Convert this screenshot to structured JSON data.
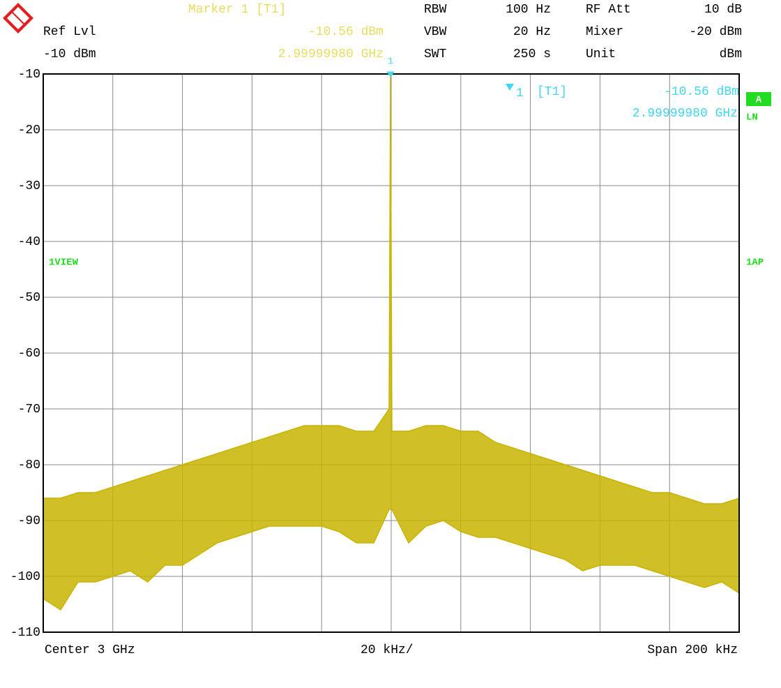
{
  "header": {
    "marker_title": "Marker 1 [T1]",
    "marker_level": "-10.56 dBm",
    "marker_freq": "2.99999980 GHz",
    "ref_lvl_label": "Ref Lvl",
    "ref_lvl": "-10 dBm",
    "settings": [
      {
        "name": "RBW",
        "value": "100 Hz"
      },
      {
        "name": "VBW",
        "value": "20 Hz"
      },
      {
        "name": "SWT",
        "value": "250 s"
      },
      {
        "name": "RF Att",
        "value": "10 dB"
      },
      {
        "name": "Mixer",
        "value": "-20 dBm"
      },
      {
        "name": "Unit",
        "value": "dBm"
      }
    ]
  },
  "side": {
    "trace_box": "A",
    "detector": "LN",
    "view": "1VIEW",
    "ap": "1AP"
  },
  "footer": {
    "center": "Center 3 GHz",
    "div": "20 kHz/",
    "span": "Span 200 kHz"
  },
  "chart_data": {
    "type": "line",
    "x": [
      -100,
      -95,
      -90,
      -85,
      -80,
      -75,
      -70,
      -65,
      -60,
      -55,
      -50,
      -45,
      -40,
      -35,
      -30,
      -25,
      -20,
      -15,
      -10,
      -5,
      -0.6,
      -0.2,
      0.2,
      5,
      10,
      15,
      20,
      25,
      30,
      35,
      40,
      45,
      50,
      55,
      60,
      65,
      70,
      75,
      80,
      85,
      90,
      95,
      100
    ],
    "series": [
      {
        "color": "#c8b400",
        "values": [
          -86,
          -86,
          -85,
          -85,
          -84,
          -83,
          -82,
          -81,
          -80,
          -79,
          -78,
          -77,
          -76,
          -75,
          -74,
          -73,
          -73,
          -73,
          -74,
          -74,
          -70,
          -10.56,
          -74,
          -74,
          -73,
          -73,
          -74,
          -74,
          -76,
          -77,
          -78,
          -79,
          -80,
          -81,
          -82,
          -83,
          -84,
          -85,
          -85,
          -86,
          -87,
          -87,
          -86
        ]
      },
      {
        "color": "#c8b400",
        "values": [
          -104,
          -106,
          -101,
          -101,
          -100,
          -99,
          -101,
          -98,
          -98,
          -96,
          -94,
          -93,
          -92,
          -91,
          -91,
          -91,
          -91,
          -92,
          -94,
          -94,
          -88,
          -88,
          -88,
          -94,
          -91,
          -90,
          -92,
          -93,
          -93,
          -94,
          -95,
          -96,
          -97,
          -99,
          -98,
          -98,
          -98,
          -99,
          -100,
          -101,
          -102,
          -101,
          -103
        ]
      }
    ],
    "xlim": [
      -100,
      100
    ],
    "xticks": [
      -80,
      -60,
      -40,
      -20,
      0,
      20,
      40,
      60,
      80
    ],
    "ylim": [
      -110,
      -10
    ],
    "yticks": [
      -10,
      -20,
      -30,
      -40,
      -50,
      -60,
      -70,
      -80,
      -90,
      -100,
      -110
    ],
    "grid": true,
    "marker": {
      "label": "1",
      "tag": "[T1]",
      "x": -0.2,
      "y": -10.56,
      "level": "-10.56 dBm",
      "freq": "2.99999980 GHz",
      "color": "#40d8f0"
    }
  }
}
